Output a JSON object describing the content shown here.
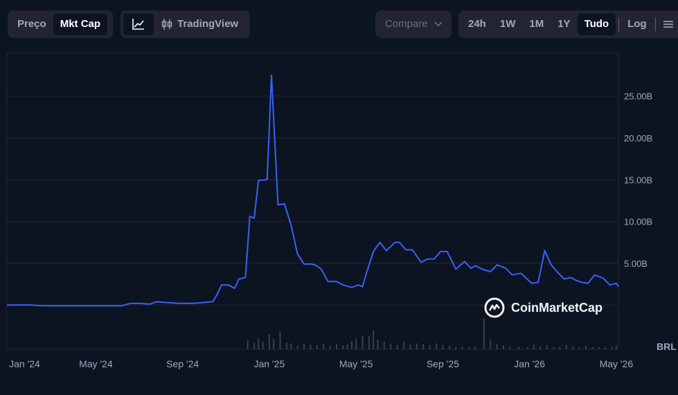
{
  "toolbar": {
    "metric_tabs": [
      {
        "label": "Preço",
        "active": false
      },
      {
        "label": "Mkt Cap",
        "active": true
      }
    ],
    "view_tabs": {
      "line_icon": "line-chart-icon",
      "tradingview_icon": "candlestick-icon",
      "tradingview_label": "TradingView"
    },
    "compare_label": "Compare",
    "ranges": [
      {
        "label": "24h",
        "active": false
      },
      {
        "label": "1W",
        "active": false
      },
      {
        "label": "1M",
        "active": false
      },
      {
        "label": "1Y",
        "active": false
      },
      {
        "label": "Tudo",
        "active": true
      }
    ],
    "log_label": "Log"
  },
  "watermark": "CoinMarketCap",
  "currency_label": "BRL",
  "colors": {
    "background": "#0d1421",
    "line": "#3861fb",
    "grid": "#222531",
    "volume": "#3a3f4c"
  },
  "chart_data": {
    "type": "line",
    "title": "",
    "xlabel": "",
    "ylabel": "",
    "y_ticks": [
      {
        "value": 5,
        "label": "5.00B"
      },
      {
        "value": 10,
        "label": "10.00B"
      },
      {
        "value": 15,
        "label": "15.00B"
      },
      {
        "value": 20,
        "label": "20.00B"
      },
      {
        "value": 25,
        "label": "25.00B"
      }
    ],
    "x_ticks": [
      {
        "value": 0,
        "label": "Jan '24"
      },
      {
        "value": 4,
        "label": "May '24"
      },
      {
        "value": 8,
        "label": "Sep '24"
      },
      {
        "value": 12,
        "label": "Jan '25"
      },
      {
        "value": 16,
        "label": "May '25"
      },
      {
        "value": 20,
        "label": "Sep '25"
      },
      {
        "value": 24,
        "label": "Jan '26"
      },
      {
        "value": 28,
        "label": "May '26"
      }
    ],
    "xlim": [
      -0.1,
      28.1
    ],
    "ylim": [
      -5.3,
      30.2
    ],
    "grid": true,
    "series": [
      {
        "x": [
          -0.1,
          1.0,
          1.6,
          2.3,
          3.6,
          5.2,
          5.6,
          6.0,
          6.5,
          6.8,
          7.2,
          7.8,
          8.5,
          9.0,
          9.4,
          9.6,
          9.8,
          10.1,
          10.4,
          10.6,
          10.9,
          11.1,
          11.3,
          11.5,
          11.9,
          12.1,
          12.4,
          12.7,
          13.0,
          13.3,
          13.6,
          13.9,
          14.1,
          14.4,
          14.7,
          15.1,
          15.4,
          15.8,
          16.1,
          16.3,
          16.5,
          16.8,
          17.1,
          17.4,
          17.8,
          18.0,
          18.3,
          18.6,
          19.0,
          19.3,
          19.6,
          19.9,
          20.2,
          20.6,
          21.0,
          21.3,
          21.5,
          21.9,
          22.2,
          22.5,
          22.9,
          23.2,
          23.6,
          24.1,
          24.4,
          24.7,
          25.0,
          25.3,
          25.6,
          25.9,
          26.1,
          26.4,
          26.7,
          27.0,
          27.4,
          27.7,
          28.0,
          28.1
        ],
        "values": [
          0.0,
          0.0,
          -0.1,
          -0.1,
          -0.1,
          -0.1,
          0.2,
          0.2,
          0.1,
          0.4,
          0.3,
          0.2,
          0.2,
          0.3,
          0.4,
          1.3,
          2.4,
          2.4,
          2.0,
          3.1,
          3.3,
          10.6,
          10.4,
          14.9,
          15.0,
          27.5,
          12.0,
          12.1,
          9.6,
          6.1,
          4.9,
          4.9,
          4.8,
          4.3,
          2.8,
          2.8,
          2.4,
          2.1,
          2.4,
          2.2,
          4.0,
          6.4,
          7.5,
          6.5,
          7.5,
          7.5,
          6.6,
          6.6,
          5.1,
          5.5,
          5.5,
          6.4,
          6.4,
          4.3,
          5.2,
          4.4,
          4.7,
          4.2,
          4.0,
          4.8,
          4.4,
          3.6,
          3.8,
          2.6,
          2.7,
          6.5,
          4.8,
          3.9,
          3.1,
          3.3,
          3.0,
          2.7,
          2.6,
          3.6,
          3.2,
          2.4,
          2.6,
          2.2
        ]
      }
    ],
    "volume": [
      {
        "x": 11.0,
        "v": 0.45
      },
      {
        "x": 11.3,
        "v": 0.32
      },
      {
        "x": 11.5,
        "v": 0.55
      },
      {
        "x": 11.7,
        "v": 0.4
      },
      {
        "x": 12.0,
        "v": 0.78
      },
      {
        "x": 12.2,
        "v": 0.52
      },
      {
        "x": 12.5,
        "v": 0.92
      },
      {
        "x": 12.8,
        "v": 0.35
      },
      {
        "x": 13.0,
        "v": 0.3
      },
      {
        "x": 13.3,
        "v": 0.18
      },
      {
        "x": 13.6,
        "v": 0.28
      },
      {
        "x": 13.9,
        "v": 0.22
      },
      {
        "x": 14.2,
        "v": 0.2
      },
      {
        "x": 14.5,
        "v": 0.3
      },
      {
        "x": 14.8,
        "v": 0.18
      },
      {
        "x": 15.1,
        "v": 0.28
      },
      {
        "x": 15.4,
        "v": 0.2
      },
      {
        "x": 15.6,
        "v": 0.25
      },
      {
        "x": 15.8,
        "v": 0.4
      },
      {
        "x": 16.0,
        "v": 0.55
      },
      {
        "x": 16.3,
        "v": 0.7
      },
      {
        "x": 16.6,
        "v": 0.68
      },
      {
        "x": 16.8,
        "v": 0.95
      },
      {
        "x": 17.0,
        "v": 0.5
      },
      {
        "x": 17.3,
        "v": 0.4
      },
      {
        "x": 17.6,
        "v": 0.28
      },
      {
        "x": 17.9,
        "v": 0.2
      },
      {
        "x": 18.2,
        "v": 0.38
      },
      {
        "x": 18.5,
        "v": 0.25
      },
      {
        "x": 18.8,
        "v": 0.3
      },
      {
        "x": 19.1,
        "v": 0.25
      },
      {
        "x": 19.4,
        "v": 0.2
      },
      {
        "x": 19.7,
        "v": 0.3
      },
      {
        "x": 20.0,
        "v": 0.22
      },
      {
        "x": 20.3,
        "v": 0.18
      },
      {
        "x": 20.6,
        "v": 0.12
      },
      {
        "x": 20.9,
        "v": 0.15
      },
      {
        "x": 21.2,
        "v": 0.1
      },
      {
        "x": 21.5,
        "v": 0.12
      },
      {
        "x": 21.9,
        "v": 1.6
      },
      {
        "x": 22.2,
        "v": 0.5
      },
      {
        "x": 22.5,
        "v": 0.28
      },
      {
        "x": 22.8,
        "v": 0.2
      },
      {
        "x": 23.1,
        "v": 0.15
      },
      {
        "x": 23.5,
        "v": 0.12
      },
      {
        "x": 23.9,
        "v": 0.1
      },
      {
        "x": 24.2,
        "v": 0.25
      },
      {
        "x": 24.5,
        "v": 0.15
      },
      {
        "x": 24.8,
        "v": 0.2
      },
      {
        "x": 25.1,
        "v": 0.1
      },
      {
        "x": 25.4,
        "v": 0.12
      },
      {
        "x": 25.7,
        "v": 0.22
      },
      {
        "x": 26.0,
        "v": 0.15
      },
      {
        "x": 26.3,
        "v": 0.1
      },
      {
        "x": 26.6,
        "v": 0.18
      },
      {
        "x": 26.9,
        "v": 0.12
      },
      {
        "x": 27.2,
        "v": 0.1
      },
      {
        "x": 27.5,
        "v": 0.08
      },
      {
        "x": 27.8,
        "v": 0.12
      },
      {
        "x": 28.0,
        "v": 0.2
      }
    ]
  }
}
